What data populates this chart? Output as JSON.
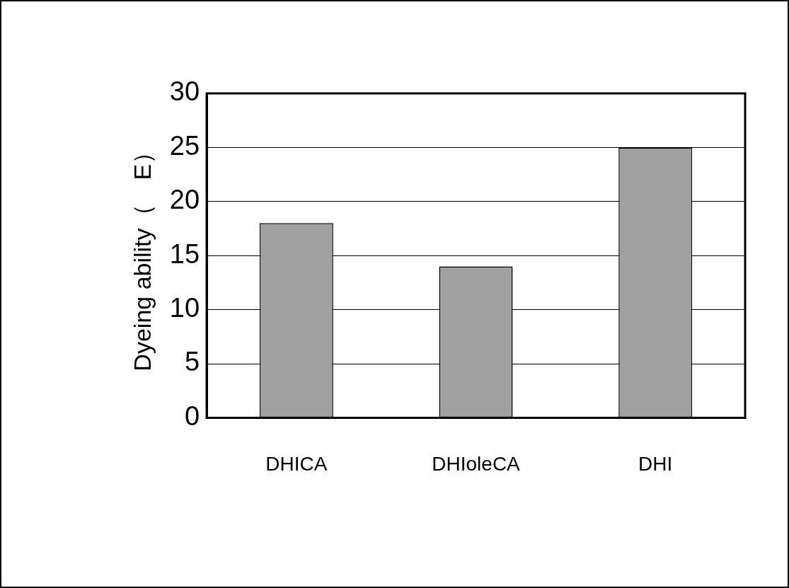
{
  "chart_data": {
    "type": "bar",
    "ylabel": "Dyeing ability（　E）",
    "categories": [
      "DHICA",
      "DHIoleCA",
      "DHI"
    ],
    "values": [
      18,
      14,
      25
    ],
    "color": "#a0a0a0",
    "ylim": [
      0,
      30
    ],
    "yticks": [
      0,
      5,
      10,
      15,
      20,
      25,
      30
    ],
    "grid": "y",
    "legend": false
  }
}
